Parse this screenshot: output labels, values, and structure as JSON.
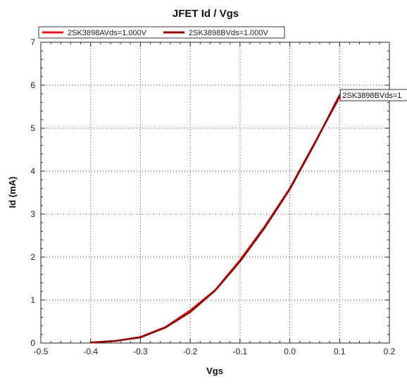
{
  "chart_data": {
    "type": "line",
    "title": "JFET Id / Vgs",
    "xlabel": "Vgs",
    "ylabel": "Id (mA)",
    "xlim": [
      -0.5,
      0.2
    ],
    "ylim": [
      0,
      7
    ],
    "xticks": [
      "-0.5",
      "-0.4",
      "-0.3",
      "-0.2",
      "-0.1",
      "0.0",
      "0.1",
      "0.2"
    ],
    "yticks": [
      "0",
      "1",
      "2",
      "3",
      "4",
      "5",
      "6",
      "7"
    ],
    "grid": true,
    "legend_position": "top-left",
    "series": [
      {
        "name": "2SK3898AVds=1.000V",
        "color": "#e8141c",
        "x": [
          -0.4,
          -0.35,
          -0.3,
          -0.25,
          -0.2,
          -0.15,
          -0.1,
          -0.05,
          0.0,
          0.05,
          0.1
        ],
        "y": [
          0.01,
          0.05,
          0.14,
          0.37,
          0.76,
          1.23,
          1.93,
          2.72,
          3.6,
          4.66,
          5.72
        ]
      },
      {
        "name": "2SK3898BVds=1.000V",
        "color": "#8b0000",
        "x": [
          -0.4,
          -0.35,
          -0.3,
          -0.25,
          -0.2,
          -0.15,
          -0.1,
          -0.05,
          0.0,
          0.05,
          0.1
        ],
        "y": [
          0.01,
          0.05,
          0.13,
          0.36,
          0.72,
          1.22,
          1.9,
          2.69,
          3.58,
          4.64,
          5.77
        ]
      }
    ],
    "annotation": {
      "text": "2SK3898BVds=1",
      "x": 0.1,
      "y": 5.77
    }
  }
}
